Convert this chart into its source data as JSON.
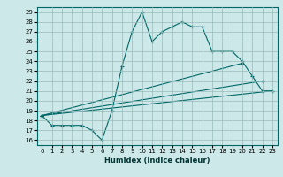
{
  "title": "",
  "xlabel": "Humidex (Indice chaleur)",
  "ylabel": "",
  "xlim": [
    -0.5,
    23.5
  ],
  "ylim": [
    15.5,
    29.5
  ],
  "xticks": [
    0,
    1,
    2,
    3,
    4,
    5,
    6,
    7,
    8,
    9,
    10,
    11,
    12,
    13,
    14,
    15,
    16,
    17,
    18,
    19,
    20,
    21,
    22,
    23
  ],
  "yticks": [
    16,
    17,
    18,
    19,
    20,
    21,
    22,
    23,
    24,
    25,
    26,
    27,
    28,
    29
  ],
  "bg_color": "#cce8e8",
  "line_color": "#006666",
  "grid_color": "#99bbbb",
  "lines": [
    {
      "x": [
        0,
        1,
        2,
        3,
        4,
        5,
        6,
        7,
        8,
        9,
        10,
        11,
        12,
        13,
        14,
        15,
        16,
        17,
        18,
        19,
        20,
        21,
        22,
        23
      ],
      "y": [
        18.5,
        17.5,
        17.5,
        17.5,
        17.5,
        17.0,
        16.0,
        19.0,
        23.5,
        27.0,
        29.0,
        26.0,
        27.0,
        27.5,
        28.0,
        27.5,
        27.5,
        25.0,
        25.0,
        25.0,
        24.0,
        22.5,
        21.0,
        21.0
      ]
    },
    {
      "x": [
        0,
        23
      ],
      "y": [
        18.5,
        21.0
      ]
    },
    {
      "x": [
        0,
        20
      ],
      "y": [
        18.5,
        23.8
      ]
    },
    {
      "x": [
        0,
        22
      ],
      "y": [
        18.5,
        22.0
      ]
    }
  ]
}
